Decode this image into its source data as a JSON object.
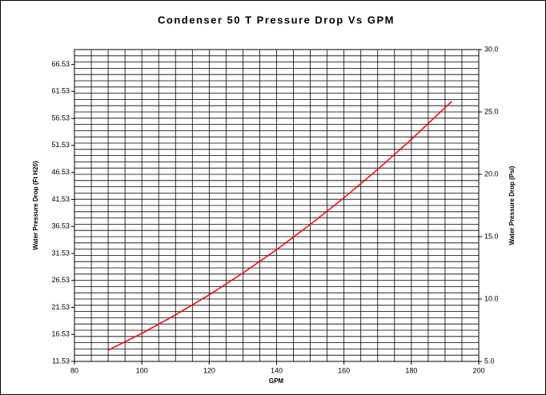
{
  "chart_data": {
    "type": "line",
    "title": "Condenser 50 T Pressure Drop Vs GPM",
    "xlabel": "GPM",
    "ylabel": "Water Pressure Drop (Ft H20)",
    "y2label": "Water Pressure Drop (Psi)",
    "x": [
      90,
      100,
      110,
      120,
      130,
      140,
      150,
      160,
      170,
      180,
      192
    ],
    "series": [
      {
        "name": "Pressure Drop",
        "color": "#ff0000",
        "axis": "y2",
        "values": [
          5.9,
          7.25,
          8.73,
          10.34,
          12.08,
          13.96,
          15.98,
          18.12,
          20.39,
          22.8,
          25.85
        ]
      }
    ],
    "xlim": [
      80,
      200
    ],
    "xticks": [
      80,
      100,
      120,
      140,
      160,
      180,
      200
    ],
    "x_minor_ticks": [
      85,
      90,
      95,
      105,
      110,
      115,
      125,
      130,
      135,
      145,
      150,
      155,
      165,
      170,
      175,
      185,
      190,
      195
    ],
    "ylim": [
      11.53,
      69.28
    ],
    "yticks": [
      11.53,
      16.53,
      21.53,
      26.53,
      31.53,
      36.53,
      41.53,
      46.53,
      51.53,
      56.53,
      61.53,
      66.53
    ],
    "y2lim": [
      5,
      30
    ],
    "y2ticks": [
      {
        "value": 5,
        "label": "5.0"
      },
      {
        "value": 10,
        "label": "10.0"
      },
      {
        "value": 15,
        "label": "15.0"
      },
      {
        "value": 20,
        "label": "20.0"
      },
      {
        "value": 25,
        "label": "25.0"
      },
      {
        "value": 30,
        "label": "30.0"
      }
    ],
    "y2_minor_ticks": [
      5.5,
      6,
      6.5,
      7,
      7.5,
      8,
      8.5,
      9,
      9.5,
      10.5,
      11,
      11.5,
      12,
      12.5,
      13,
      13.5,
      14,
      14.5,
      15.5,
      16,
      16.5,
      17,
      17.5,
      18,
      18.5,
      19,
      19.5,
      20.5,
      21,
      21.5,
      22,
      22.5,
      23,
      23.5,
      24,
      24.5,
      25.5,
      26,
      26.5,
      27,
      27.5,
      28,
      28.5,
      29,
      29.5
    ],
    "grid": true
  }
}
